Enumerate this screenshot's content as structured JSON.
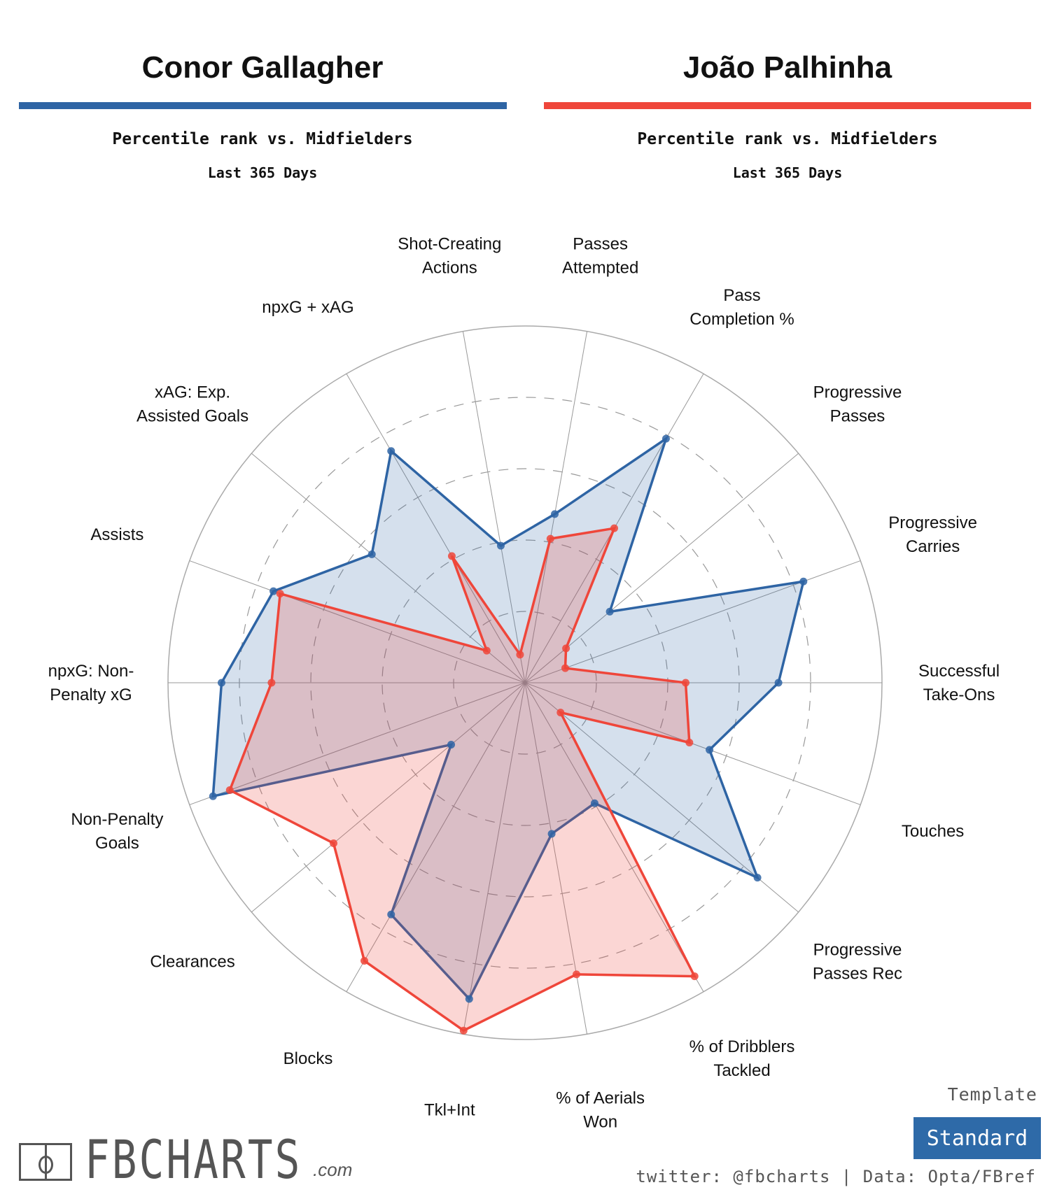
{
  "players": [
    {
      "name": "Conor Gallagher",
      "subtitle": "Percentile rank vs. Midfielders",
      "period": "Last 365 Days",
      "color": "#2e64a4",
      "fill": "rgba(46,100,164,0.2)"
    },
    {
      "name": "João Palhinha",
      "subtitle": "Percentile rank vs. Midfielders",
      "period": "Last 365 Days",
      "color": "#ef463a",
      "fill": "rgba(239,70,58,0.22)"
    }
  ],
  "footer": {
    "template_label": "Template",
    "template_value": "Standard",
    "credit": "twitter: @fbcharts | Data: Opta/FBref",
    "logo": "FBCHARTS.com"
  },
  "chart_data": {
    "type": "radar",
    "range": [
      0,
      100
    ],
    "rings": [
      20,
      40,
      60,
      80,
      100
    ],
    "categories": [
      "Successful Take-Ons",
      "Progressive Carries",
      "Progressive Passes",
      "Pass Completion %",
      "Passes Attempted",
      "Shot-Creating Actions",
      "npxG + xAG",
      "xAG: Exp. Assisted Goals",
      "Assists",
      "npxG: Non-Penalty xG",
      "Non-Penalty Goals",
      "Clearances",
      "Blocks",
      "Tkl+Int",
      "% of Aerials Won",
      "% of Dribblers Tackled",
      "Progressive Passes Rec",
      "Touches"
    ],
    "label_lines": [
      [
        "Successful",
        "Take-Ons"
      ],
      [
        "Progressive",
        "Carries"
      ],
      [
        "Progressive",
        "Passes"
      ],
      [
        "Pass",
        "Completion %"
      ],
      [
        "Passes",
        "Attempted"
      ],
      [
        "Shot-Creating",
        "Actions"
      ],
      [
        "npxG + xAG"
      ],
      [
        "xAG: Exp.",
        "Assisted Goals"
      ],
      [
        "Assists"
      ],
      [
        "npxG: Non-",
        "Penalty xG"
      ],
      [
        "Non-Penalty",
        "Goals"
      ],
      [
        "Clearances"
      ],
      [
        "Blocks"
      ],
      [
        "Tkl+Int"
      ],
      [
        "% of Aerials",
        "Won"
      ],
      [
        "% of Dribblers",
        "Tackled"
      ],
      [
        "Progressive",
        "Passes Rec"
      ],
      [
        "Touches"
      ]
    ],
    "series": [
      {
        "name": "Conor Gallagher",
        "values": [
          71,
          83,
          31,
          79,
          48,
          39,
          75,
          56,
          75,
          85,
          93,
          27,
          75,
          90,
          43,
          39,
          85,
          55
        ]
      },
      {
        "name": "João Palhinha",
        "values": [
          45,
          12,
          15,
          50,
          41,
          8,
          41,
          14,
          73,
          71,
          88,
          70,
          90,
          99,
          83,
          95,
          13,
          49
        ]
      }
    ]
  }
}
